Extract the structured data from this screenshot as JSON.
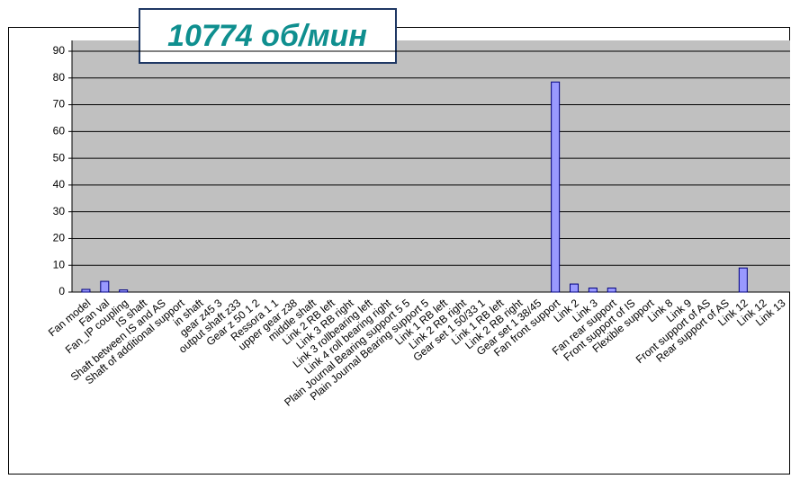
{
  "chart_data": {
    "type": "bar",
    "title": "10774 об/мин",
    "categories": [
      "Fan model",
      "Fan val",
      "Fan_IP coupling",
      "IS shaft",
      "Shaft between IS and AS",
      "Shaft of additional support",
      "in shaft",
      "gear z45 3",
      "output shaft z33",
      "Gear z 50 1 2",
      "Ressora 1 1",
      "upper gear z38",
      "middle shaft",
      "Link 2 RB left",
      "Link 3 RB right",
      "Link 3 rollbearing left",
      "Link 4 roll bearing right",
      "Plain Journal Bearing support 5 5",
      "Plain Journal Bearing support 5",
      "Link 1 RB left",
      "Link 2  RB right",
      "Gear set 1 50/33 1",
      "Link 1 RB left",
      "Link 2 RB right",
      "Gear set 1 38/45",
      "Fan front support",
      "Link 2",
      "Link 3",
      "Fan rear support",
      "Front support of IS",
      "Flexible support",
      "Link 8",
      "Link 9",
      "Front support of AS",
      "Rear support of AS",
      "Link 12",
      "Link 12",
      "Link 13"
    ],
    "values": [
      1,
      4,
      0.8,
      0,
      0,
      0,
      0,
      0,
      0,
      0,
      0,
      0,
      0,
      0,
      0,
      0,
      0,
      0,
      0,
      0,
      0,
      0,
      0,
      0,
      0,
      78.5,
      3,
      1.5,
      1.5,
      0,
      0,
      0,
      0,
      0,
      0,
      9,
      0,
      0
    ],
    "color": "#9999ff",
    "ylim": [
      0,
      90
    ],
    "yticks": [
      0,
      10,
      20,
      30,
      40,
      50,
      60,
      70,
      80,
      90
    ],
    "grid": true
  }
}
